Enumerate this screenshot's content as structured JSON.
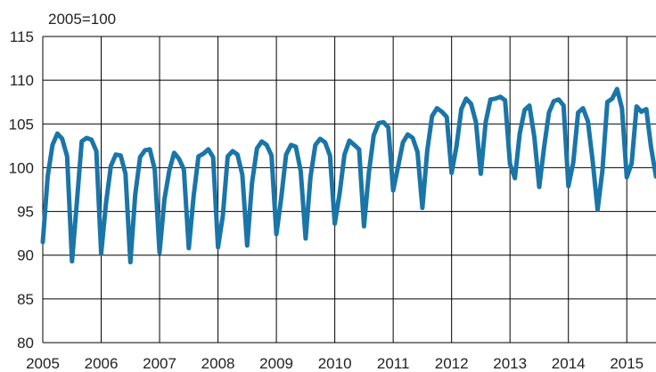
{
  "chart_data": {
    "type": "line",
    "unit_label": "2005=100",
    "ylim": [
      80,
      115
    ],
    "yticks": [
      80,
      85,
      90,
      95,
      100,
      105,
      110,
      115
    ],
    "xlim": [
      2005,
      2015.5
    ],
    "xticks": [
      "2005",
      "2006",
      "2007",
      "2008",
      "2009",
      "2010",
      "2011",
      "2012",
      "2013",
      "2014",
      "2015"
    ],
    "grid": true,
    "legend": "none",
    "series": [
      {
        "color": "#1a75a8",
        "x_start": "2005-01",
        "frequency": "monthly",
        "values": [
          91.5,
          99,
          102.6,
          103.9,
          103.3,
          101.3,
          89.3,
          96,
          103,
          103.4,
          103.2,
          101.9,
          90.2,
          96,
          100.2,
          101.5,
          101.4,
          99.3,
          89.2,
          96.9,
          101.2,
          102,
          102.1,
          99.8,
          90.3,
          96.4,
          99.7,
          101.7,
          101,
          99.8,
          90.8,
          96.8,
          101.3,
          101.6,
          102.1,
          101.2,
          90.9,
          94.5,
          101.3,
          101.9,
          101.5,
          99.2,
          91.1,
          98.3,
          102.2,
          103,
          102.6,
          101.4,
          92.4,
          96.6,
          101.5,
          102.6,
          102.4,
          99.6,
          91.9,
          98.9,
          102.6,
          103.3,
          102.9,
          101.4,
          93.6,
          97.1,
          101.5,
          103.1,
          102.6,
          102.1,
          93.3,
          99.4,
          103.7,
          105.1,
          105.2,
          104.6,
          97.4,
          100.1,
          102.9,
          103.8,
          103.4,
          101.8,
          95.4,
          102,
          105.9,
          106.8,
          106.4,
          105.8,
          99.4,
          102.4,
          106.7,
          107.9,
          107.3,
          105.2,
          99.3,
          105.2,
          107.8,
          107.9,
          108.1,
          107.7,
          100.4,
          98.8,
          103.9,
          106.6,
          107.1,
          103.5,
          97.8,
          102.3,
          106.3,
          107.6,
          107.8,
          107.1,
          97.9,
          100.6,
          106.3,
          106.8,
          105.3,
          100.7,
          95.2,
          99.7,
          107.5,
          107.9,
          109,
          106.8,
          98.9,
          100.5,
          107,
          106.4,
          106.7,
          102.3,
          99
        ]
      }
    ]
  }
}
